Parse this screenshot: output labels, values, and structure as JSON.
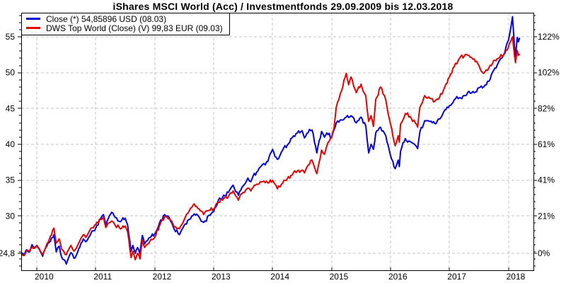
{
  "title": "iShares MSCI World (Acc) / Investmentfonds 29.09.2009 bis 12.03.2018",
  "legend": {
    "items": [
      {
        "label": "Close (*) 54,85896 USD (08.03)",
        "color": "#0000dd"
      },
      {
        "label": "DWS Top World (Close) (V) 99,83 EUR (09.03)",
        "color": "#e60000"
      }
    ]
  },
  "chart_data": {
    "type": "line",
    "title": "iShares MSCI World (Acc) / Investmentfonds 29.09.2009 bis 12.03.2018",
    "grid": true,
    "x_axis": {
      "range": [
        2009.72,
        2018.42
      ],
      "ticks": [
        2010,
        2011,
        2012,
        2013,
        2014,
        2015,
        2016,
        2017,
        2018
      ],
      "tick_labels": [
        "2010",
        "2011",
        "2012",
        "2013",
        "2014",
        "2015",
        "2016",
        "2017",
        "2018"
      ]
    },
    "y_axis_left": {
      "labels": [
        [
          "55",
          55
        ],
        [
          "50",
          50
        ],
        [
          "45",
          45
        ],
        [
          "40",
          40
        ],
        [
          "35",
          35
        ],
        [
          "30",
          30
        ],
        [
          "24,8",
          24.8
        ]
      ],
      "range": [
        22.4,
        58.4
      ]
    },
    "y_axis_right": {
      "labels": [
        [
          "122%",
          55
        ],
        [
          "102%",
          50
        ],
        [
          "82%",
          45
        ],
        [
          "61%",
          40
        ],
        [
          "41%",
          35
        ],
        [
          "21%",
          30
        ],
        [
          "0%",
          24.8
        ]
      ]
    },
    "gridline_values": [
      55,
      50,
      45,
      40,
      35,
      30,
      24.8
    ],
    "series": [
      {
        "name": "Close (*) 54,85896 USD (08.03)",
        "color": "#0000dd",
        "points": [
          [
            2009.74,
            24.8
          ],
          [
            2009.79,
            24.6
          ],
          [
            2009.83,
            25.3
          ],
          [
            2009.88,
            25.0
          ],
          [
            2009.92,
            26.0
          ],
          [
            2009.96,
            25.6
          ],
          [
            2010.0,
            25.9
          ],
          [
            2010.04,
            25.4
          ],
          [
            2010.1,
            24.4
          ],
          [
            2010.17,
            25.8
          ],
          [
            2010.21,
            26.3
          ],
          [
            2010.29,
            27.4
          ],
          [
            2010.33,
            25.0
          ],
          [
            2010.38,
            25.8
          ],
          [
            2010.42,
            24.3
          ],
          [
            2010.5,
            23.3
          ],
          [
            2010.54,
            24.2
          ],
          [
            2010.58,
            24.9
          ],
          [
            2010.63,
            24.1
          ],
          [
            2010.67,
            24.5
          ],
          [
            2010.71,
            25.4
          ],
          [
            2010.75,
            26.2
          ],
          [
            2010.79,
            26.8
          ],
          [
            2010.83,
            26.4
          ],
          [
            2010.88,
            27.0
          ],
          [
            2010.92,
            27.6
          ],
          [
            2011.0,
            28.3
          ],
          [
            2011.08,
            29.6
          ],
          [
            2011.13,
            30.2
          ],
          [
            2011.17,
            28.7
          ],
          [
            2011.21,
            29.6
          ],
          [
            2011.27,
            30.5
          ],
          [
            2011.33,
            29.8
          ],
          [
            2011.42,
            29.2
          ],
          [
            2011.5,
            29.7
          ],
          [
            2011.54,
            28.8
          ],
          [
            2011.6,
            25.1
          ],
          [
            2011.63,
            25.9
          ],
          [
            2011.67,
            24.8
          ],
          [
            2011.71,
            25.6
          ],
          [
            2011.75,
            24.7
          ],
          [
            2011.79,
            27.3
          ],
          [
            2011.83,
            26.1
          ],
          [
            2011.88,
            26.6
          ],
          [
            2011.92,
            27.0
          ],
          [
            2012.0,
            27.5
          ],
          [
            2012.08,
            29.0
          ],
          [
            2012.17,
            30.2
          ],
          [
            2012.21,
            30.0
          ],
          [
            2012.25,
            29.7
          ],
          [
            2012.33,
            28.2
          ],
          [
            2012.42,
            27.4
          ],
          [
            2012.46,
            28.1
          ],
          [
            2012.5,
            28.7
          ],
          [
            2012.58,
            29.5
          ],
          [
            2012.63,
            30.0
          ],
          [
            2012.67,
            30.3
          ],
          [
            2012.75,
            29.9
          ],
          [
            2012.83,
            29.1
          ],
          [
            2012.92,
            30.1
          ],
          [
            2013.0,
            30.6
          ],
          [
            2013.08,
            32.2
          ],
          [
            2013.17,
            32.9
          ],
          [
            2013.25,
            33.3
          ],
          [
            2013.33,
            34.3
          ],
          [
            2013.42,
            32.9
          ],
          [
            2013.5,
            34.2
          ],
          [
            2013.58,
            35.3
          ],
          [
            2013.63,
            34.8
          ],
          [
            2013.67,
            35.6
          ],
          [
            2013.75,
            36.3
          ],
          [
            2013.83,
            37.2
          ],
          [
            2013.92,
            37.6
          ],
          [
            2014.0,
            39.3
          ],
          [
            2014.08,
            37.9
          ],
          [
            2014.17,
            39.2
          ],
          [
            2014.25,
            39.9
          ],
          [
            2014.33,
            40.9
          ],
          [
            2014.42,
            41.6
          ],
          [
            2014.5,
            41.9
          ],
          [
            2014.54,
            40.9
          ],
          [
            2014.58,
            41.5
          ],
          [
            2014.67,
            42.0
          ],
          [
            2014.75,
            38.8
          ],
          [
            2014.83,
            41.8
          ],
          [
            2014.88,
            41.0
          ],
          [
            2014.92,
            41.6
          ],
          [
            2015.0,
            40.9
          ],
          [
            2015.04,
            42.0
          ],
          [
            2015.08,
            43.0
          ],
          [
            2015.17,
            43.4
          ],
          [
            2015.25,
            43.8
          ],
          [
            2015.33,
            44.0
          ],
          [
            2015.42,
            43.0
          ],
          [
            2015.5,
            43.8
          ],
          [
            2015.58,
            42.6
          ],
          [
            2015.63,
            38.8
          ],
          [
            2015.67,
            40.0
          ],
          [
            2015.71,
            39.3
          ],
          [
            2015.75,
            41.6
          ],
          [
            2015.83,
            42.4
          ],
          [
            2015.92,
            41.2
          ],
          [
            2016.0,
            38.4
          ],
          [
            2016.08,
            36.6
          ],
          [
            2016.13,
            37.8
          ],
          [
            2016.15,
            36.9
          ],
          [
            2016.17,
            39.0
          ],
          [
            2016.25,
            40.8
          ],
          [
            2016.33,
            40.4
          ],
          [
            2016.42,
            39.9
          ],
          [
            2016.46,
            39.4
          ],
          [
            2016.5,
            41.8
          ],
          [
            2016.58,
            43.3
          ],
          [
            2016.67,
            43.2
          ],
          [
            2016.75,
            42.9
          ],
          [
            2016.83,
            43.5
          ],
          [
            2016.92,
            44.8
          ],
          [
            2017.0,
            45.4
          ],
          [
            2017.08,
            46.2
          ],
          [
            2017.17,
            46.5
          ],
          [
            2017.25,
            46.8
          ],
          [
            2017.33,
            47.4
          ],
          [
            2017.42,
            47.2
          ],
          [
            2017.5,
            47.9
          ],
          [
            2017.58,
            48.0
          ],
          [
            2017.67,
            48.8
          ],
          [
            2017.75,
            50.3
          ],
          [
            2017.83,
            51.4
          ],
          [
            2017.92,
            52.5
          ],
          [
            2018.0,
            54.5
          ],
          [
            2018.04,
            56.2
          ],
          [
            2018.07,
            57.8
          ],
          [
            2018.1,
            54.0
          ],
          [
            2018.12,
            52.3
          ],
          [
            2018.15,
            54.9
          ],
          [
            2018.17,
            54.3
          ],
          [
            2018.19,
            54.86
          ]
        ]
      },
      {
        "name": "DWS Top World (Close) (V) 99,83 EUR (09.03)",
        "color": "#e60000",
        "points": [
          [
            2009.74,
            24.8
          ],
          [
            2009.79,
            24.5
          ],
          [
            2009.83,
            25.2
          ],
          [
            2009.88,
            25.1
          ],
          [
            2009.92,
            25.7
          ],
          [
            2009.96,
            25.5
          ],
          [
            2010.0,
            25.9
          ],
          [
            2010.04,
            25.5
          ],
          [
            2010.1,
            24.6
          ],
          [
            2010.17,
            26.1
          ],
          [
            2010.21,
            26.7
          ],
          [
            2010.29,
            28.3
          ],
          [
            2010.33,
            26.2
          ],
          [
            2010.38,
            26.8
          ],
          [
            2010.42,
            25.4
          ],
          [
            2010.5,
            24.6
          ],
          [
            2010.54,
            25.3
          ],
          [
            2010.58,
            25.9
          ],
          [
            2010.63,
            25.1
          ],
          [
            2010.67,
            25.5
          ],
          [
            2010.71,
            26.2
          ],
          [
            2010.75,
            26.9
          ],
          [
            2010.79,
            27.4
          ],
          [
            2010.83,
            27.0
          ],
          [
            2010.88,
            27.7
          ],
          [
            2010.92,
            28.3
          ],
          [
            2011.0,
            28.8
          ],
          [
            2011.08,
            29.5
          ],
          [
            2011.13,
            29.8
          ],
          [
            2011.17,
            28.4
          ],
          [
            2011.21,
            29.0
          ],
          [
            2011.27,
            29.3
          ],
          [
            2011.33,
            28.7
          ],
          [
            2011.42,
            28.2
          ],
          [
            2011.5,
            28.6
          ],
          [
            2011.54,
            27.8
          ],
          [
            2011.6,
            24.2
          ],
          [
            2011.63,
            25.1
          ],
          [
            2011.67,
            23.9
          ],
          [
            2011.71,
            24.8
          ],
          [
            2011.75,
            24.0
          ],
          [
            2011.79,
            26.7
          ],
          [
            2011.83,
            25.6
          ],
          [
            2011.88,
            26.1
          ],
          [
            2011.92,
            26.5
          ],
          [
            2012.0,
            27.0
          ],
          [
            2012.08,
            28.6
          ],
          [
            2012.17,
            29.9
          ],
          [
            2012.21,
            29.8
          ],
          [
            2012.25,
            29.6
          ],
          [
            2012.33,
            28.5
          ],
          [
            2012.42,
            28.2
          ],
          [
            2012.46,
            28.8
          ],
          [
            2012.5,
            29.5
          ],
          [
            2012.58,
            30.6
          ],
          [
            2012.63,
            31.2
          ],
          [
            2012.67,
            31.7
          ],
          [
            2012.75,
            31.0
          ],
          [
            2012.83,
            30.2
          ],
          [
            2012.92,
            30.8
          ],
          [
            2013.0,
            31.0
          ],
          [
            2013.08,
            31.9
          ],
          [
            2013.17,
            32.4
          ],
          [
            2013.25,
            32.7
          ],
          [
            2013.33,
            33.5
          ],
          [
            2013.42,
            32.2
          ],
          [
            2013.5,
            33.3
          ],
          [
            2013.58,
            33.9
          ],
          [
            2013.63,
            33.5
          ],
          [
            2013.67,
            34.0
          ],
          [
            2013.75,
            34.4
          ],
          [
            2013.83,
            34.8
          ],
          [
            2013.92,
            34.6
          ],
          [
            2014.0,
            35.0
          ],
          [
            2014.08,
            33.8
          ],
          [
            2014.17,
            34.6
          ],
          [
            2014.25,
            35.2
          ],
          [
            2014.33,
            35.7
          ],
          [
            2014.42,
            36.3
          ],
          [
            2014.5,
            36.4
          ],
          [
            2014.54,
            36.0
          ],
          [
            2014.58,
            36.8
          ],
          [
            2014.67,
            37.8
          ],
          [
            2014.75,
            35.9
          ],
          [
            2014.83,
            39.2
          ],
          [
            2014.88,
            38.6
          ],
          [
            2014.92,
            39.8
          ],
          [
            2015.0,
            41.0
          ],
          [
            2015.04,
            42.2
          ],
          [
            2015.08,
            45.2
          ],
          [
            2015.17,
            47.5
          ],
          [
            2015.25,
            49.9
          ],
          [
            2015.29,
            48.3
          ],
          [
            2015.33,
            49.4
          ],
          [
            2015.42,
            47.2
          ],
          [
            2015.5,
            48.4
          ],
          [
            2015.58,
            46.8
          ],
          [
            2015.63,
            43.2
          ],
          [
            2015.67,
            44.0
          ],
          [
            2015.71,
            42.5
          ],
          [
            2015.75,
            46.3
          ],
          [
            2015.83,
            48.0
          ],
          [
            2015.92,
            46.2
          ],
          [
            2016.0,
            42.8
          ],
          [
            2016.08,
            39.8
          ],
          [
            2016.13,
            41.2
          ],
          [
            2016.15,
            40.3
          ],
          [
            2016.17,
            42.8
          ],
          [
            2016.25,
            44.3
          ],
          [
            2016.33,
            43.9
          ],
          [
            2016.42,
            43.0
          ],
          [
            2016.46,
            42.4
          ],
          [
            2016.5,
            45.2
          ],
          [
            2016.58,
            46.8
          ],
          [
            2016.67,
            46.4
          ],
          [
            2016.75,
            46.0
          ],
          [
            2016.83,
            46.5
          ],
          [
            2016.92,
            48.0
          ],
          [
            2017.0,
            49.4
          ],
          [
            2017.08,
            50.8
          ],
          [
            2017.17,
            52.0
          ],
          [
            2017.25,
            52.3
          ],
          [
            2017.33,
            52.4
          ],
          [
            2017.42,
            51.9
          ],
          [
            2017.5,
            51.0
          ],
          [
            2017.58,
            49.9
          ],
          [
            2017.67,
            50.7
          ],
          [
            2017.75,
            51.7
          ],
          [
            2017.83,
            52.0
          ],
          [
            2017.92,
            52.5
          ],
          [
            2018.0,
            53.6
          ],
          [
            2018.04,
            54.4
          ],
          [
            2018.07,
            55.0
          ],
          [
            2018.1,
            52.6
          ],
          [
            2018.12,
            51.4
          ],
          [
            2018.15,
            53.1
          ],
          [
            2018.17,
            52.4
          ],
          [
            2018.19,
            52.6
          ]
        ]
      }
    ]
  },
  "style": {
    "grid_color": "#c6c6c6",
    "axis_color": "#000000",
    "label_color": "#000000",
    "background": "#ffffff"
  }
}
